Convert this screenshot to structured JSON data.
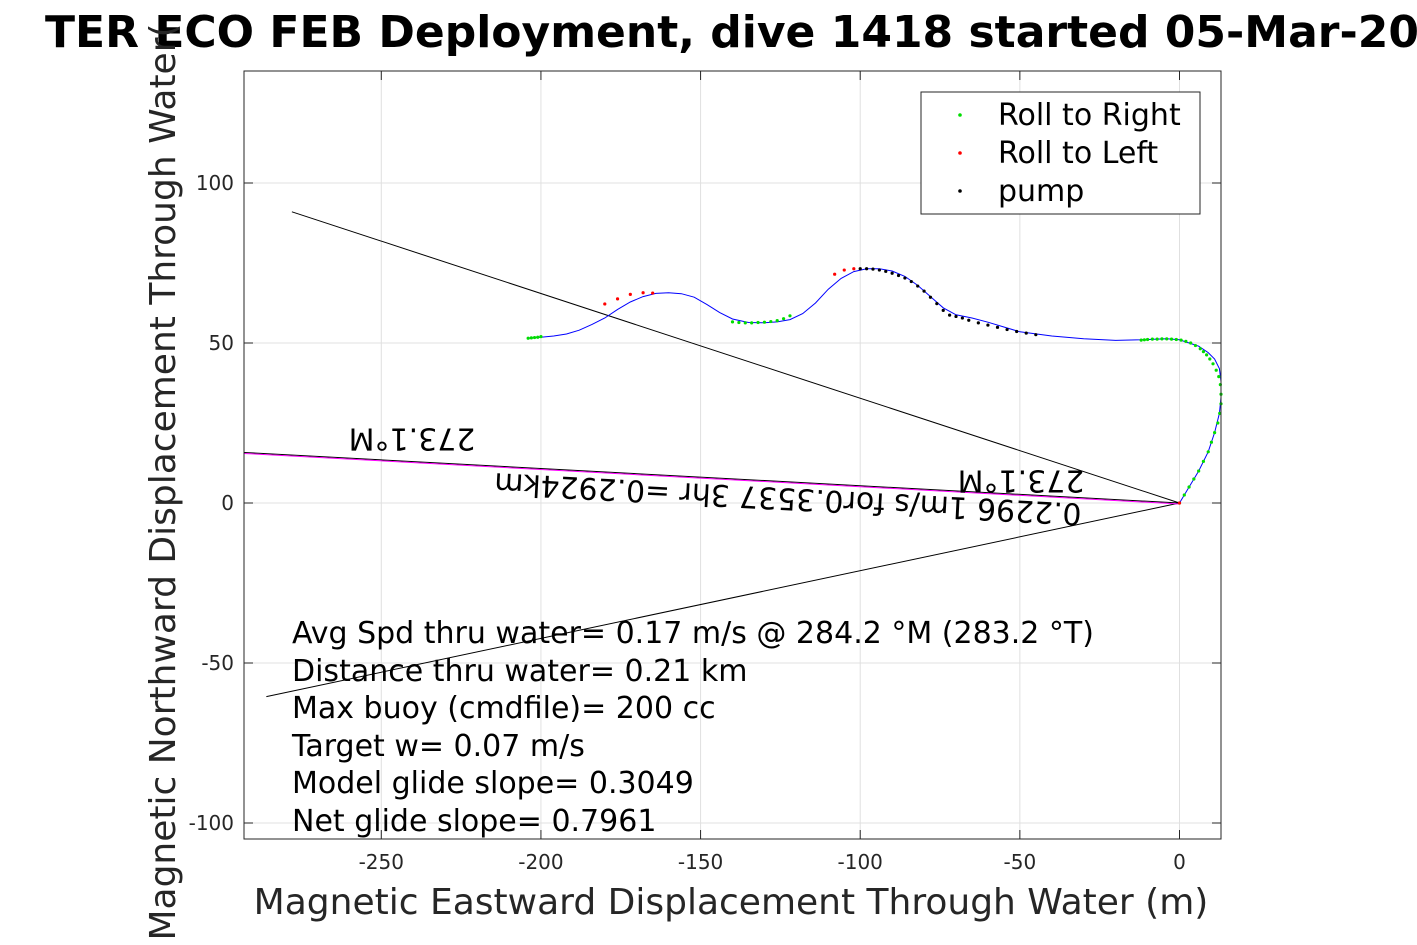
{
  "chart_data": {
    "type": "scatter",
    "title": "TER ECO FEB Deployment, dive 1418 started 05-Mar-20",
    "xlabel": "Magnetic Eastward Displacement Through Water (m)",
    "ylabel": "Magnetic Northward Displacement Through Water(",
    "xlim": [
      -293,
      13
    ],
    "ylim": [
      -105,
      135
    ],
    "xticks": [
      -250,
      -200,
      -150,
      -100,
      -50,
      0
    ],
    "yticks": [
      100,
      50,
      0,
      -50,
      -100
    ],
    "xtick_labels": [
      "-250",
      "-200",
      "-150",
      "-100",
      "-50",
      "0"
    ],
    "ytick_labels": [
      "100",
      "50",
      "0",
      "-50",
      "-100"
    ],
    "grid": true,
    "legend_position": "top-right",
    "legend": [
      {
        "label": "Roll to Right",
        "color": "#00dd00"
      },
      {
        "label": "Roll to Left",
        "color": "#ff0000"
      },
      {
        "label": "pump",
        "color": "#000000"
      }
    ],
    "colors": {
      "track": "#0000ff",
      "current_line": "#ff00ff",
      "reference_lines": "#000000",
      "grid": "#e0e0e0"
    },
    "track": {
      "x": [
        0,
        3,
        6,
        9,
        11,
        12.5,
        13,
        13,
        12.5,
        11,
        9,
        6,
        3,
        0,
        -4,
        -8,
        -12,
        -20,
        -30,
        -40,
        -50,
        -55,
        -60,
        -65,
        -70,
        -74,
        -78,
        -82,
        -86,
        -90,
        -94,
        -98,
        -102,
        -106,
        -110,
        -114,
        -118,
        -122,
        -126,
        -130,
        -135,
        -140,
        -144,
        -148,
        -152,
        -156,
        -160,
        -164,
        -168,
        -172,
        -176,
        -180,
        -184,
        -188,
        -192,
        -196,
        -200,
        -204
      ],
      "y": [
        0,
        5,
        10,
        16,
        22,
        28,
        33,
        38,
        42,
        45,
        47,
        49,
        50,
        51,
        51.3,
        51.2,
        51,
        50.8,
        51.3,
        52.2,
        53.5,
        55,
        56.5,
        57.8,
        58.8,
        61,
        64.5,
        68,
        70.8,
        72.5,
        73.2,
        73.2,
        72.3,
        70.2,
        66.8,
        62.5,
        59.2,
        57.3,
        56.6,
        56.3,
        56.4,
        57.5,
        59.5,
        62,
        64.3,
        65.4,
        65.7,
        65.5,
        64.5,
        62.8,
        60.5,
        57.8,
        55.8,
        54,
        52.8,
        52.2,
        51.8,
        51.5
      ]
    },
    "roll_right": {
      "x": [
        0,
        1.5,
        3,
        4.5,
        6,
        7.5,
        9,
        10,
        11,
        12,
        12.6,
        13,
        13,
        12.8,
        12.3,
        11.5,
        10.5,
        9.5,
        8.5,
        7.5,
        6.5,
        5,
        3.5,
        2,
        0.5,
        -1,
        -2.5,
        -4,
        -5.5,
        -7,
        -8.5,
        -10,
        -11,
        -12,
        -122,
        -124,
        -126,
        -128,
        -130,
        -132,
        -134,
        -136,
        -138,
        -140,
        -200,
        -201,
        -202,
        -203,
        -204
      ],
      "y": [
        0,
        2.5,
        5,
        7.5,
        10,
        13,
        16,
        19,
        22,
        25,
        28,
        31,
        34,
        37,
        39.5,
        41.5,
        43.5,
        45,
        46.3,
        47.3,
        48.2,
        49.2,
        50,
        50.5,
        50.9,
        51.1,
        51.2,
        51.3,
        51.3,
        51.2,
        51.2,
        51.1,
        51,
        50.9,
        58.5,
        57.6,
        57,
        56.7,
        56.5,
        56.4,
        56.3,
        56.3,
        56.4,
        56.6,
        52,
        51.8,
        51.7,
        51.6,
        51.5
      ]
    },
    "roll_left": {
      "x": [
        0,
        -108,
        -105,
        -102,
        -165,
        -168,
        -172,
        -176,
        -180
      ],
      "y": [
        0,
        71.5,
        72.8,
        73.2,
        65.6,
        65.7,
        65.2,
        63.8,
        62.2
      ]
    },
    "pump": {
      "x": [
        -45,
        -48,
        -51,
        -54,
        -57,
        -60,
        -63,
        -66,
        -68,
        -70,
        -72,
        -74,
        -76,
        -78,
        -80,
        -82,
        -84,
        -86,
        -88,
        -90,
        -92,
        -94,
        -96,
        -98,
        -100
      ],
      "y": [
        52.6,
        53.1,
        53.6,
        54.2,
        54.9,
        55.6,
        56.3,
        57.1,
        57.8,
        58.3,
        58.7,
        60.2,
        62.3,
        64.3,
        66.2,
        67.8,
        69.2,
        70.3,
        71.1,
        71.8,
        72.4,
        72.8,
        73.1,
        73.2,
        73.2
      ]
    },
    "current_line": {
      "x": [
        0,
        -293
      ],
      "y": [
        0,
        15.8
      ]
    },
    "reference_lines": [
      {
        "x": [
          0,
          -278
        ],
        "y": [
          0,
          91
        ]
      },
      {
        "x": [
          0,
          -286
        ],
        "y": [
          0,
          -60.5
        ]
      }
    ],
    "annotations": {
      "heading_left": "273.1°M",
      "heading_right": "273.1°M",
      "current_text": "0.2296 1m/s for0.3537 3hr =0.2924km"
    },
    "stats": [
      "Avg Spd thru water=  0.17 m/s @ 284.2 °M (283.2 °T)",
      "Distance thru water=  0.21 km",
      "Max buoy (cmdfile)= 200 cc",
      "Target w= 0.07 m/s",
      "Model glide slope= 0.3049",
      "Net glide slope= 0.7961"
    ]
  }
}
